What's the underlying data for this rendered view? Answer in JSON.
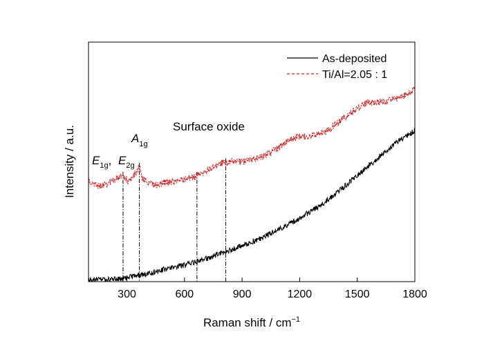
{
  "chart_data": {
    "type": "line",
    "xlabel": "Raman shift / cm",
    "xlabel_sup": "−1",
    "ylabel": "Intensity / a.u.",
    "xlim": [
      100,
      1800
    ],
    "x_ticks": [
      300,
      600,
      900,
      1200,
      1500,
      1800
    ],
    "y_ticks_shown": false,
    "grid": false,
    "legend_position": "top-right",
    "series": [
      {
        "name": "As-deposited",
        "color": "#000000",
        "line_style": "solid",
        "points": [
          [
            100,
            2
          ],
          [
            160,
            1
          ],
          [
            220,
            2
          ],
          [
            300,
            5
          ],
          [
            400,
            10
          ],
          [
            500,
            17
          ],
          [
            600,
            23
          ],
          [
            700,
            31
          ],
          [
            800,
            41
          ],
          [
            900,
            51
          ],
          [
            1000,
            62
          ],
          [
            1100,
            76
          ],
          [
            1200,
            91
          ],
          [
            1300,
            108
          ],
          [
            1400,
            129
          ],
          [
            1500,
            153
          ],
          [
            1600,
            176
          ],
          [
            1700,
            200
          ],
          [
            1800,
            218
          ]
        ]
      },
      {
        "name": "Ti/Al=2.05 : 1",
        "color": "#cc2222",
        "line_style": "dashed",
        "points": [
          [
            100,
            144
          ],
          [
            150,
            137
          ],
          [
            200,
            141
          ],
          [
            250,
            149
          ],
          [
            280,
            152
          ],
          [
            310,
            144
          ],
          [
            340,
            154
          ],
          [
            365,
            165
          ],
          [
            380,
            149
          ],
          [
            420,
            140
          ],
          [
            460,
            139
          ],
          [
            500,
            143
          ],
          [
            550,
            144
          ],
          [
            600,
            146
          ],
          [
            650,
            150
          ],
          [
            700,
            157
          ],
          [
            750,
            166
          ],
          [
            800,
            171
          ],
          [
            850,
            173
          ],
          [
            900,
            172
          ],
          [
            950,
            176
          ],
          [
            1000,
            180
          ],
          [
            1050,
            186
          ],
          [
            1100,
            195
          ],
          [
            1150,
            205
          ],
          [
            1200,
            209
          ],
          [
            1250,
            209
          ],
          [
            1300,
            213
          ],
          [
            1350,
            219
          ],
          [
            1400,
            230
          ],
          [
            1450,
            240
          ],
          [
            1500,
            250
          ],
          [
            1550,
            258
          ],
          [
            1600,
            259
          ],
          [
            1650,
            260
          ],
          [
            1700,
            264
          ],
          [
            1750,
            269
          ],
          [
            1800,
            278
          ]
        ]
      }
    ],
    "reference_lines": [
      {
        "x": 280,
        "style": "dash-dot"
      },
      {
        "x": 365,
        "style": "dash-dot"
      },
      {
        "x": 665,
        "style": "dash-dot"
      },
      {
        "x": 815,
        "style": "dash-dot"
      }
    ],
    "annotations": {
      "e1g": {
        "base": "E",
        "sub": "1g",
        "suffix": ","
      },
      "e2g": {
        "base": "E",
        "sub": "2g"
      },
      "a1g": {
        "base": "A",
        "sub": "1g"
      },
      "surface_oxide": "Surface oxide"
    }
  }
}
